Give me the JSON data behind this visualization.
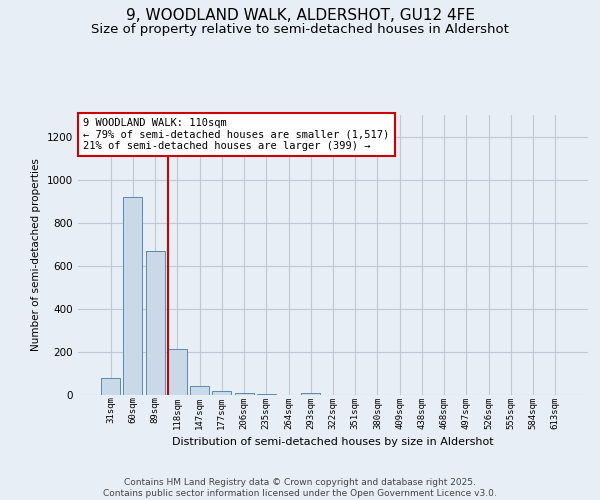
{
  "title1": "9, WOODLAND WALK, ALDERSHOT, GU12 4FE",
  "title2": "Size of property relative to semi-detached houses in Aldershot",
  "xlabel": "Distribution of semi-detached houses by size in Aldershot",
  "ylabel": "Number of semi-detached properties",
  "categories": [
    "31sqm",
    "60sqm",
    "89sqm",
    "118sqm",
    "147sqm",
    "177sqm",
    "206sqm",
    "235sqm",
    "264sqm",
    "293sqm",
    "322sqm",
    "351sqm",
    "380sqm",
    "409sqm",
    "438sqm",
    "468sqm",
    "497sqm",
    "526sqm",
    "555sqm",
    "584sqm",
    "613sqm"
  ],
  "values": [
    80,
    920,
    670,
    215,
    40,
    20,
    10,
    5,
    0,
    10,
    0,
    0,
    0,
    0,
    0,
    0,
    0,
    0,
    0,
    0,
    0
  ],
  "bar_color": "#c9d9e8",
  "bar_edge_color": "#5a8ab0",
  "annotation_line1": "9 WOODLAND WALK: 110sqm",
  "annotation_line2": "← 79% of semi-detached houses are smaller (1,517)",
  "annotation_line3": "21% of semi-detached houses are larger (399) →",
  "annotation_box_color": "#ffffff",
  "annotation_box_edge_color": "#cc0000",
  "vline_bar_index": 3,
  "vline_color": "#cc0000",
  "ylim": [
    0,
    1300
  ],
  "yticks": [
    0,
    200,
    400,
    600,
    800,
    1000,
    1200
  ],
  "grid_color": "#c0c8d8",
  "background_color": "#e8eef5",
  "footnote": "Contains HM Land Registry data © Crown copyright and database right 2025.\nContains public sector information licensed under the Open Government Licence v3.0.",
  "title1_fontsize": 11,
  "title2_fontsize": 9.5,
  "annotation_fontsize": 7.5,
  "footnote_fontsize": 6.5,
  "ylabel_fontsize": 7.5,
  "xlabel_fontsize": 8
}
